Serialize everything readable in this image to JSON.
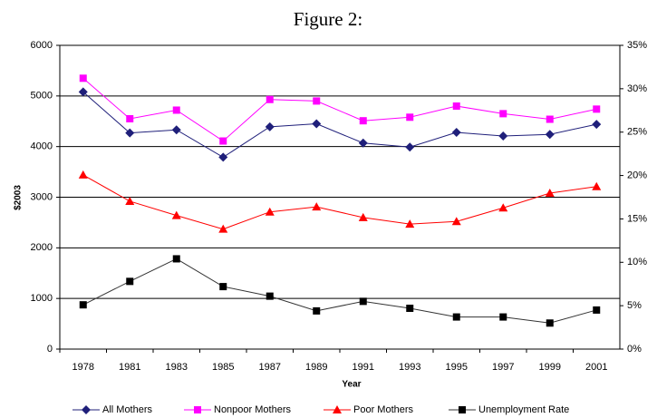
{
  "chart_data": {
    "type": "line",
    "title": "Figure 2:",
    "x_label": "Year",
    "y_label": "$2003",
    "categories": [
      "1978",
      "1981",
      "1983",
      "1985",
      "1987",
      "1989",
      "1991",
      "1993",
      "1995",
      "1997",
      "1999",
      "2001"
    ],
    "series": [
      {
        "name": "All Mothers",
        "color": "#1f1f7a",
        "marker": "diamond",
        "values": [
          5080,
          4270,
          4330,
          3790,
          4390,
          4450,
          4070,
          3990,
          4280,
          4210,
          4240,
          4440
        ]
      },
      {
        "name": "Nonpoor Mothers",
        "color": "#ff00ff",
        "marker": "square",
        "values": [
          5350,
          4550,
          4720,
          4110,
          4930,
          4900,
          4510,
          4580,
          4800,
          4650,
          4540,
          4740
        ]
      },
      {
        "name": "Poor Mothers",
        "color": "#ff0000",
        "marker": "triangle",
        "values": [
          3440,
          2920,
          2640,
          2370,
          2710,
          2810,
          2600,
          2470,
          2520,
          2790,
          3080,
          3210
        ]
      },
      {
        "name": "Unemployment Rate",
        "color": "#000000",
        "marker": "square",
        "axis": "y2",
        "values": [
          5.1,
          7.8,
          10.4,
          7.2,
          6.1,
          4.4,
          5.5,
          4.7,
          3.7,
          3.7,
          3.0,
          4.5
        ]
      }
    ],
    "ylim": [
      0,
      6000
    ],
    "yticks": [
      0,
      1000,
      2000,
      3000,
      4000,
      5000,
      6000
    ],
    "y2lim": [
      0,
      35
    ],
    "y2ticks": [
      {
        "value": 0,
        "label": "0%"
      },
      {
        "value": 5,
        "label": "5%"
      },
      {
        "value": 10,
        "label": "10%"
      },
      {
        "value": 15,
        "label": "15%"
      },
      {
        "value": 20,
        "label": "20%"
      },
      {
        "value": 25,
        "label": "25%"
      },
      {
        "value": 30,
        "label": "30%"
      },
      {
        "value": 35,
        "label": "35%"
      }
    ],
    "grid": true,
    "legend": "bottom"
  }
}
